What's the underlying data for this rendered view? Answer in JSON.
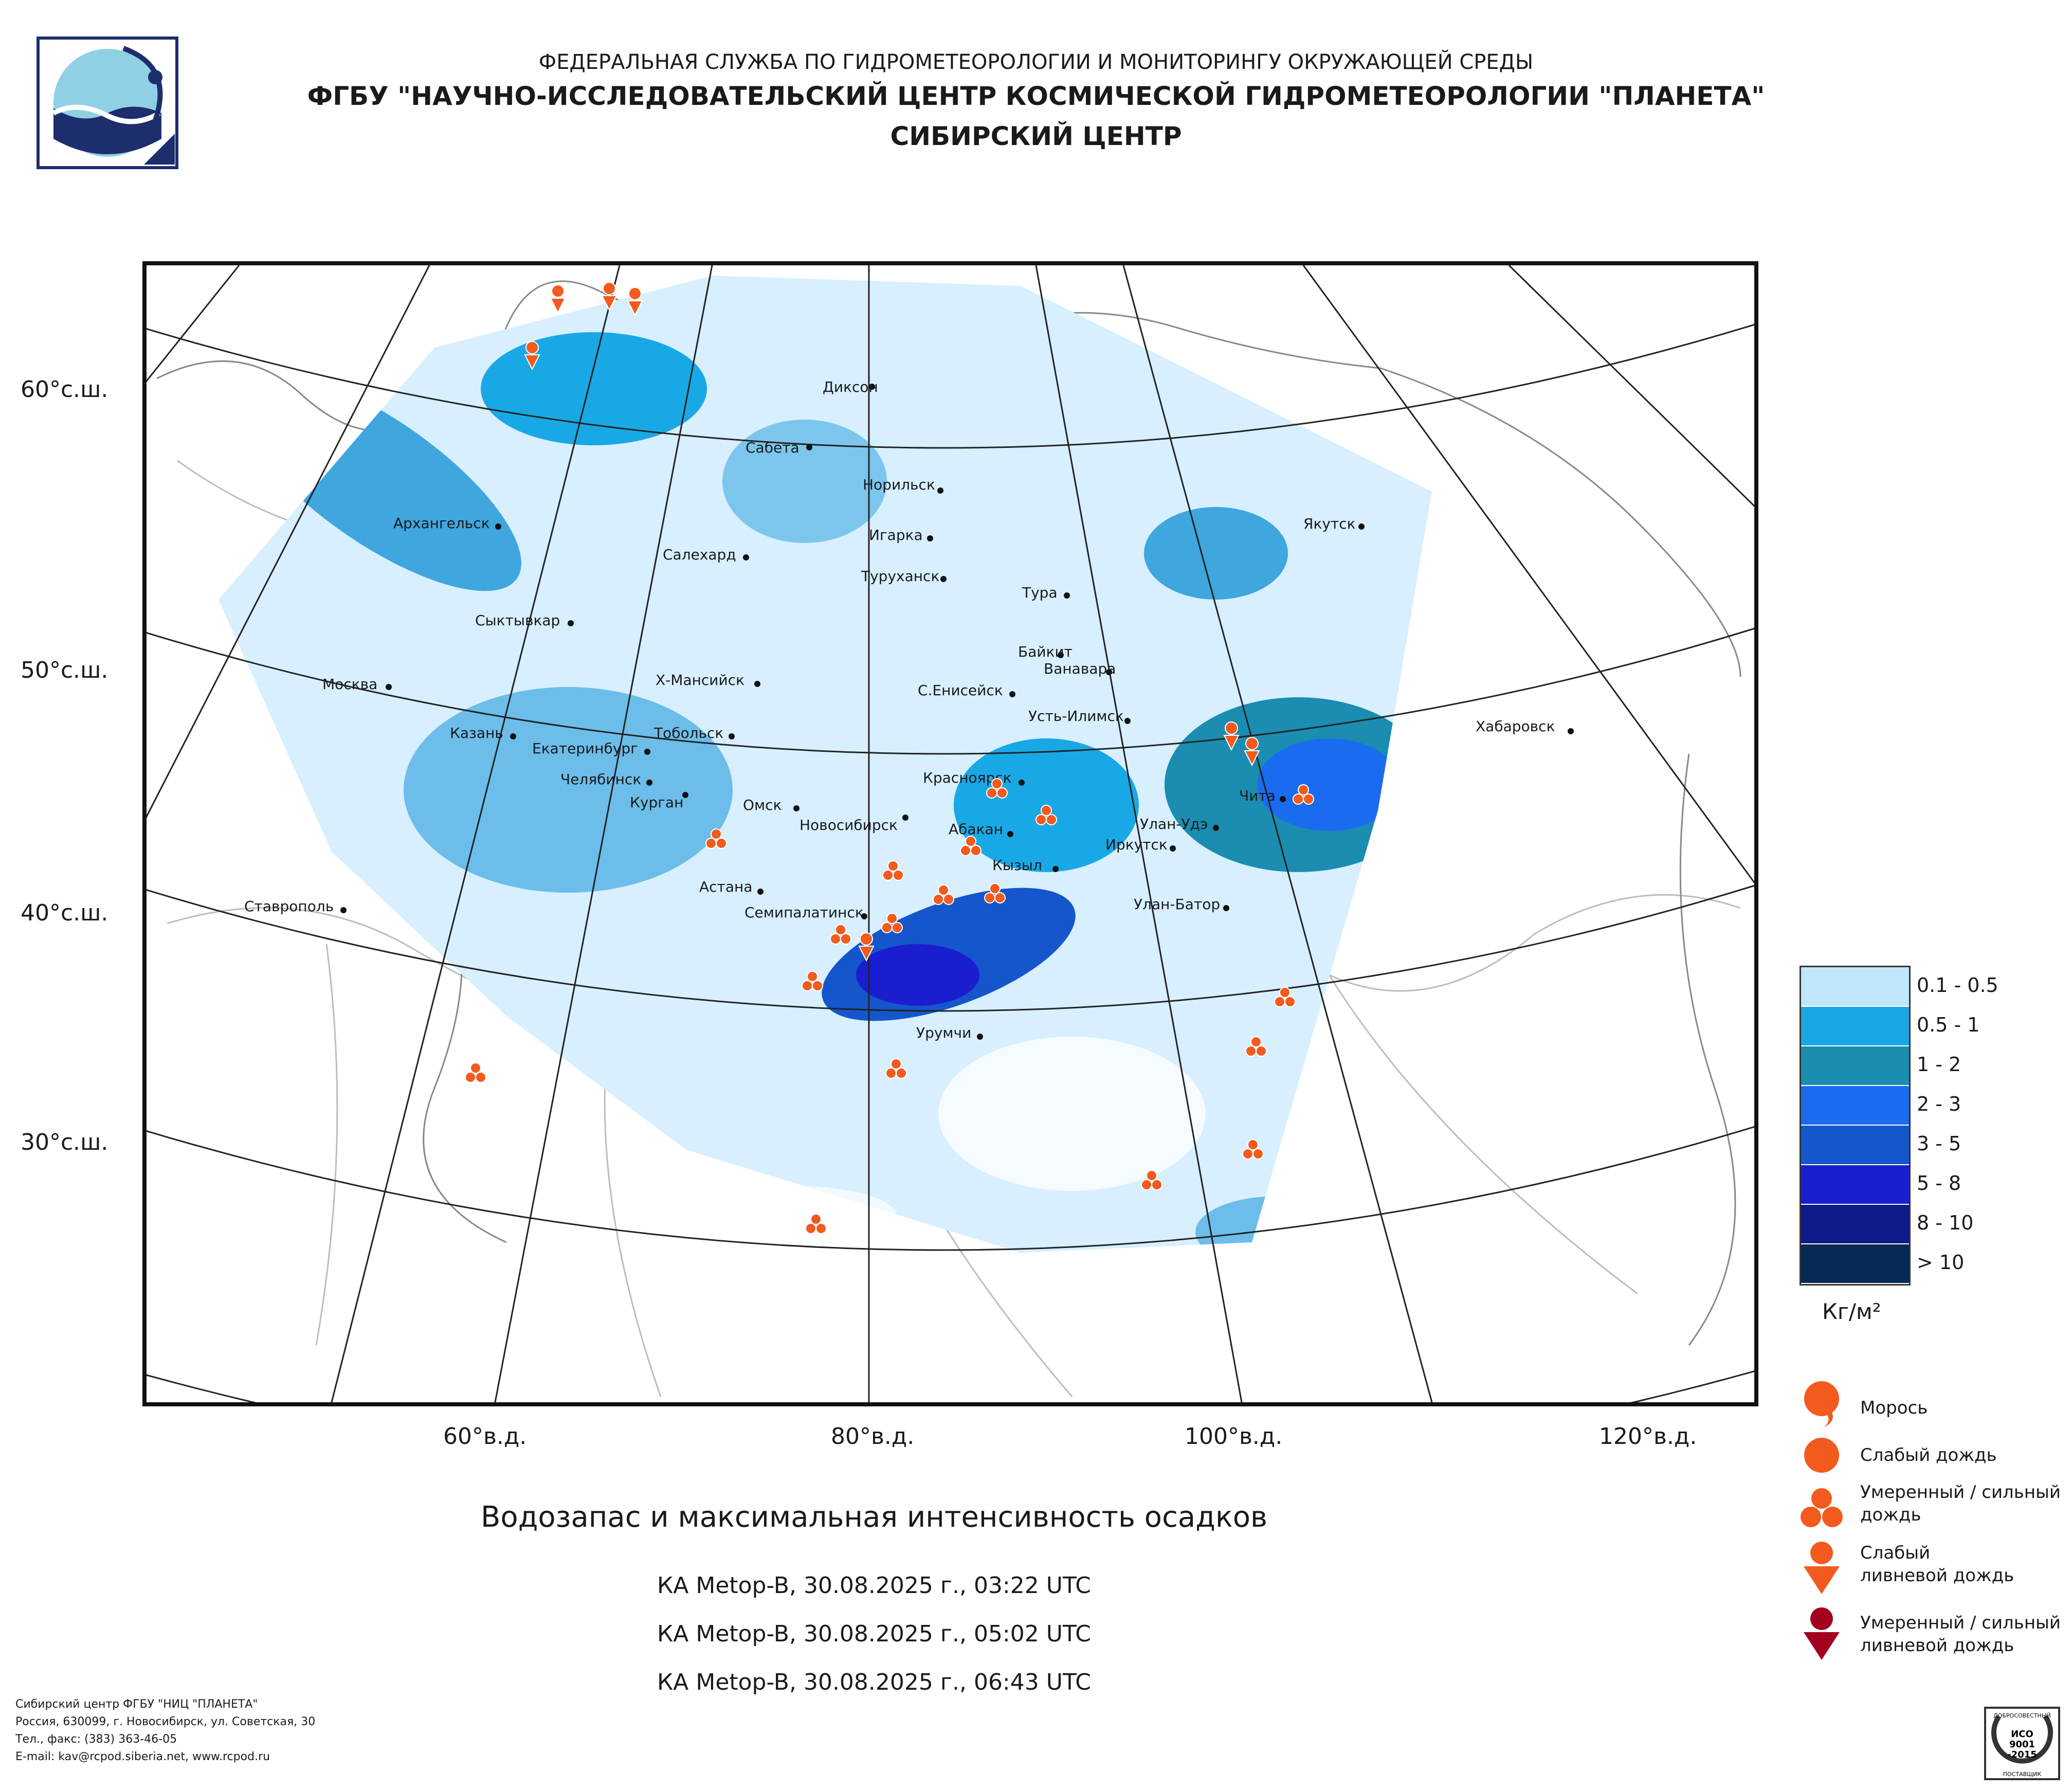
{
  "header": {
    "line1": "ФЕДЕРАЛЬНАЯ СЛУЖБА ПО ГИДРОМЕТЕОРОЛОГИИ И МОНИТОРИНГУ ОКРУЖАЮЩЕЙ СРЕДЫ",
    "line2": "ФГБУ \"НАУЧНО-ИССЛЕДОВАТЕЛЬСКИЙ ЦЕНТР КОСМИЧЕСКОЙ ГИДРОМЕТЕОРОЛОГИИ \"ПЛАНЕТА\"",
    "line3": "СИБИРСКИЙ ЦЕНТР"
  },
  "axes": {
    "lat_labels": [
      "60°с.ш.",
      "50°с.ш.",
      "40°с.ш.",
      "30°с.ш."
    ],
    "lon_labels": [
      "60°в.д.",
      "80°в.д.",
      "100°в.д.",
      "120°в.д."
    ]
  },
  "cities": [
    {
      "name": "Диксон"
    },
    {
      "name": "Сабета"
    },
    {
      "name": "Норильск"
    },
    {
      "name": "Игарка"
    },
    {
      "name": "Архангельск"
    },
    {
      "name": "Салехард"
    },
    {
      "name": "Туруханск"
    },
    {
      "name": "Тура"
    },
    {
      "name": "Якутск"
    },
    {
      "name": "Сыктывкар"
    },
    {
      "name": "Байкит"
    },
    {
      "name": "Ванавара"
    },
    {
      "name": "Москва"
    },
    {
      "name": "Х-Мансийск"
    },
    {
      "name": "С.Енисейск"
    },
    {
      "name": "Усть-Илимск"
    },
    {
      "name": "Хабаровск"
    },
    {
      "name": "Казань"
    },
    {
      "name": "Екатеринбург"
    },
    {
      "name": "Тобольск"
    },
    {
      "name": "Челябинск"
    },
    {
      "name": "Курган"
    },
    {
      "name": "Красноярск"
    },
    {
      "name": "Чита"
    },
    {
      "name": "Омск"
    },
    {
      "name": "Новосибирск"
    },
    {
      "name": "Абакан"
    },
    {
      "name": "Улан-Удэ"
    },
    {
      "name": "Иркутск"
    },
    {
      "name": "Астана"
    },
    {
      "name": "Кызыл"
    },
    {
      "name": "Ставрополь"
    },
    {
      "name": "Семипалатинск"
    },
    {
      "name": "Улан-Батор"
    },
    {
      "name": "Урумчи"
    }
  ],
  "legend": {
    "scale": [
      {
        "label": "0.1 - 0.5",
        "color": "#bfe6fb"
      },
      {
        "label": "0.5 - 1",
        "color": "#19a8e6"
      },
      {
        "label": "1 - 2",
        "color": "#1a8db0"
      },
      {
        "label": "2 - 3",
        "color": "#1a6bf0"
      },
      {
        "label": "3 - 5",
        "color": "#1556cc"
      },
      {
        "label": "5 - 8",
        "color": "#1a1ed0"
      },
      {
        "label": "8 - 10",
        "color": "#101a8a"
      },
      {
        "label": "> 10",
        "color": "#062a55"
      }
    ],
    "unit": "Кг/м²",
    "symbols": [
      {
        "label": "Морось",
        "icon": "drizzle-icon",
        "color": "#f25a1e"
      },
      {
        "label": "Слабый дождь",
        "icon": "light-rain-icon",
        "color": "#f25a1e"
      },
      {
        "label": "Умеренный / сильный дождь",
        "icon": "heavy-rain-icon",
        "color": "#f25a1e"
      },
      {
        "label": "Слабый ливневой дождь",
        "icon": "light-shower-icon",
        "color": "#f25a1e"
      },
      {
        "label": "Умеренный / сильный ливневой дождь",
        "icon": "heavy-shower-icon",
        "color": "#a3001e"
      }
    ]
  },
  "title": "Водозапас и максимальная интенсивность осадков",
  "satellite_passes": [
    "КА Metop-B, 30.08.2025 г., 03:22 UTC",
    "КА Metop-B, 30.08.2025 г., 05:02 UTC",
    "КА Metop-B, 30.08.2025 г., 06:43 UTC"
  ],
  "footer": {
    "line1": "Сибирский центр ФГБУ \"НИЦ \"ПЛАНЕТА\"",
    "line2": "Россия, 630099, г. Новосибирск, ул. Советская, 30",
    "line3": "Тел., факс: (383) 363-46-05",
    "line4": "E-mail: kav@rcpod.siberia.net, www.rcpod.ru"
  },
  "badge": {
    "top": "ДОБРОСОВЕСТНЫЙ",
    "mid1": "ИСО",
    "mid2": "9001",
    "mid3": "-2015",
    "bottom": "ПОСТАВЩИК"
  }
}
